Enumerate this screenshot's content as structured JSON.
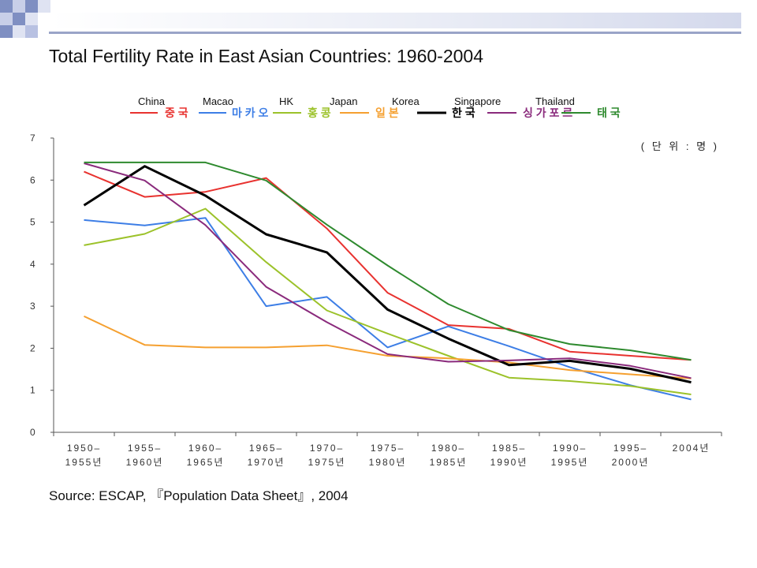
{
  "slide": {
    "title": "Total Fertility Rate in East Asian Countries: 1960-2004",
    "source": "Source: ESCAP, 『Population Data Sheet』, 2004",
    "deco_colors": [
      "#7f8fc2",
      "#b8c1e2",
      "#dfe3f2"
    ]
  },
  "chart_data": {
    "type": "line",
    "unit_label": "( 단 위 : 명 )",
    "categories": [
      [
        "1950–",
        "1955년"
      ],
      [
        "1955–",
        "1960년"
      ],
      [
        "1960–",
        "1965년"
      ],
      [
        "1965–",
        "1970년"
      ],
      [
        "1970–",
        "1975년"
      ],
      [
        "1975–",
        "1980년"
      ],
      [
        "1980–",
        "1985년"
      ],
      [
        "1985–",
        "1990년"
      ],
      [
        "1990–",
        "1995년"
      ],
      [
        "1995–",
        "2000년"
      ],
      [
        "2004년",
        ""
      ]
    ],
    "ylim": [
      0,
      7
    ],
    "yticks": [
      0,
      1,
      2,
      3,
      4,
      5,
      6,
      7
    ],
    "grid": false,
    "legend_position": "top",
    "series": [
      {
        "name": "China",
        "name_ko": "중 국",
        "color": "#e8322f",
        "values": [
          6.2,
          5.6,
          5.72,
          6.05,
          4.85,
          3.32,
          2.55,
          2.46,
          1.92,
          1.82,
          1.72
        ]
      },
      {
        "name": "Macao",
        "name_ko": "마 카 오",
        "color": "#3d7ee6",
        "values": [
          5.05,
          4.92,
          5.1,
          3.0,
          3.22,
          2.02,
          2.52,
          2.05,
          1.55,
          1.12,
          0.78
        ]
      },
      {
        "name": "HK",
        "name_ko": "홍 콩",
        "color": "#9cc22a",
        "values": [
          4.45,
          4.72,
          5.32,
          4.05,
          2.9,
          2.35,
          1.82,
          1.3,
          1.22,
          1.1,
          0.9
        ]
      },
      {
        "name": "Japan",
        "name_ko": "일 본",
        "color": "#f5a030",
        "values": [
          2.76,
          2.08,
          2.02,
          2.02,
          2.07,
          1.82,
          1.76,
          1.66,
          1.48,
          1.38,
          1.28
        ]
      },
      {
        "name": "Korea",
        "name_ko": "한 국",
        "color": "#000000",
        "values": [
          5.4,
          6.33,
          5.63,
          4.71,
          4.28,
          2.92,
          2.23,
          1.6,
          1.7,
          1.51,
          1.19
        ]
      },
      {
        "name": "Singapore",
        "name_ko": "싱 가 포 르",
        "color": "#8a2a7c",
        "values": [
          6.4,
          5.99,
          4.93,
          3.46,
          2.62,
          1.86,
          1.68,
          1.71,
          1.76,
          1.58,
          1.29
        ]
      },
      {
        "name": "Thailand",
        "name_ko": "태 국",
        "color": "#2e8a2e",
        "values": [
          6.42,
          6.42,
          6.42,
          5.99,
          4.94,
          3.97,
          3.05,
          2.43,
          2.1,
          1.95,
          1.72
        ]
      }
    ]
  }
}
